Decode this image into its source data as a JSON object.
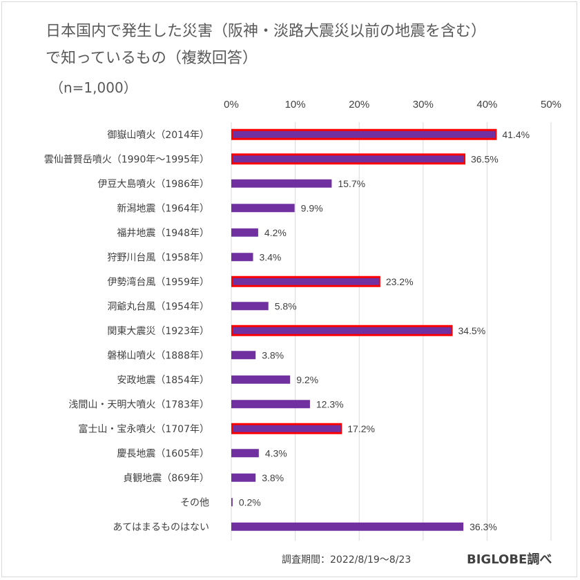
{
  "chart_data": {
    "type": "bar",
    "orientation": "horizontal",
    "title_lines": [
      "日本国内で発生した災害（阪神・淡路大震災以前の地震を含む）",
      "で知っているもの（複数回答）"
    ],
    "subtitle": "（n=1,000）",
    "x_ticks": [
      "0%",
      "10%",
      "20%",
      "30%",
      "40%",
      "50%"
    ],
    "xlim": [
      0,
      50
    ],
    "grid": true,
    "categories": [
      "御嶽山噴火（2014年）",
      "雲仙普賢岳噴火（1990年～1995年）",
      "伊豆大島噴火（1986年）",
      "新潟地震（1964年）",
      "福井地震（1948年）",
      "狩野川台風（1958年）",
      "伊勢湾台風（1959年）",
      "洞爺丸台風（1954年）",
      "関東大震災（1923年）",
      "磐梯山噴火（1888年）",
      "安政地震（1854年）",
      "浅間山・天明大噴火（1783年）",
      "富士山・宝永噴火（1707年）",
      "慶長地震（1605年）",
      "貞観地震（869年）",
      "その他",
      "あてはまるものはない"
    ],
    "values": [
      41.4,
      36.5,
      15.7,
      9.9,
      4.2,
      3.4,
      23.2,
      5.8,
      34.5,
      3.8,
      9.2,
      12.3,
      17.2,
      4.3,
      3.8,
      0.2,
      36.3
    ],
    "value_labels": [
      "41.4%",
      "36.5%",
      "15.7%",
      "9.9%",
      "4.2%",
      "3.4%",
      "23.2%",
      "5.8%",
      "34.5%",
      "3.8%",
      "9.2%",
      "12.3%",
      "17.2%",
      "4.3%",
      "3.8%",
      "0.2%",
      "36.3%"
    ],
    "highlighted": [
      true,
      true,
      false,
      false,
      false,
      false,
      true,
      false,
      true,
      false,
      false,
      false,
      true,
      false,
      false,
      false,
      false
    ],
    "bar_color": "#7030a0",
    "highlight_border_color": "#ff0000"
  },
  "footer": {
    "survey_period": "調査期間：2022/8/19～8/23",
    "source": "BIGLOBE調べ"
  }
}
